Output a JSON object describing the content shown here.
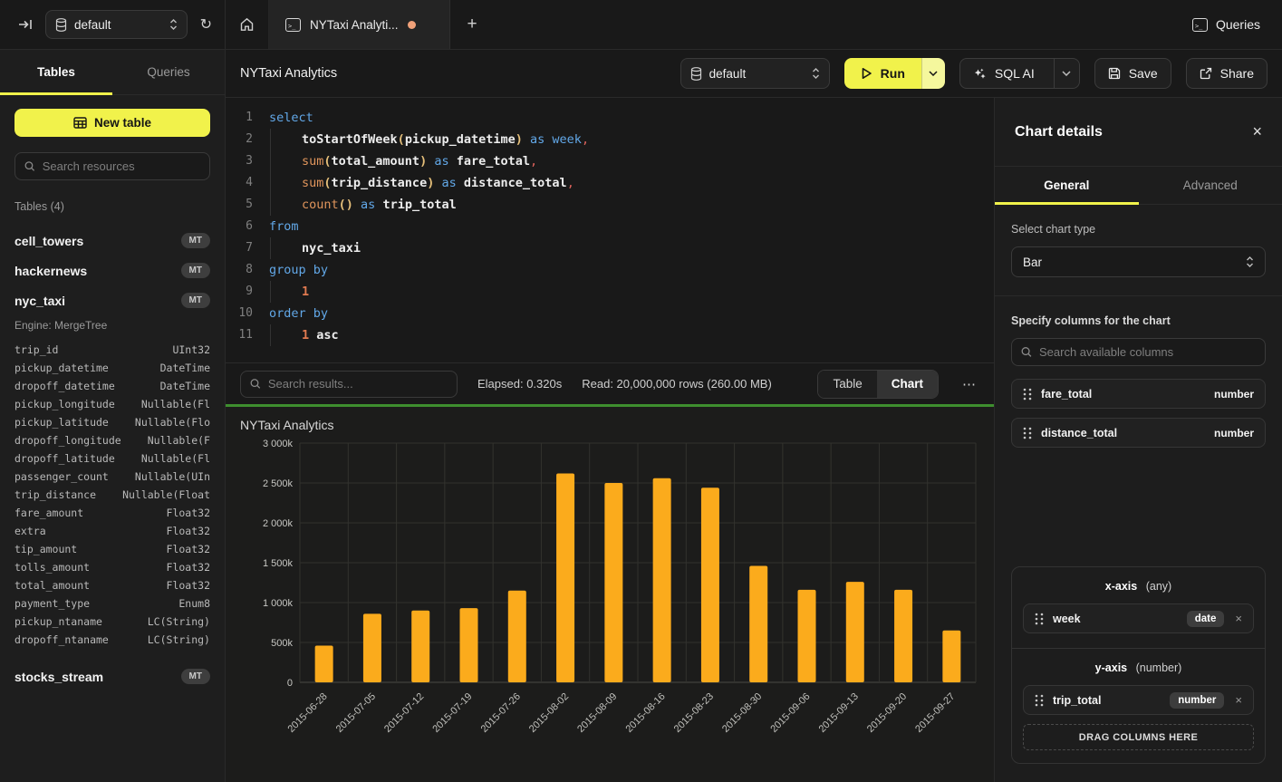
{
  "icons": {
    "refresh": "↻",
    "plus": "+",
    "ellipsis": "⋯",
    "close": "×",
    "play": "▷",
    "collapse_sidebar": "svg-arrow-to-bar",
    "database": "svg-db-cylinder",
    "home": "svg-house",
    "terminal": ">_",
    "search": "svg-magnifier",
    "sparkle": "svg-four-point-star",
    "save": "svg-floppy",
    "share": "svg-external-link",
    "chevron_down": "svg-chevron-down",
    "chevron_updown": "svg-chevron-updown",
    "drag_handle": "svg-six-dots",
    "table_grid": "svg-table-grid"
  },
  "topbar": {
    "database_selector": "default",
    "tab_title": "NYTaxi Analyti...",
    "queries_label": "Queries"
  },
  "sidebar": {
    "tabs": [
      {
        "label": "Tables",
        "active": true
      },
      {
        "label": "Queries",
        "active": false
      }
    ],
    "new_table_label": "New table",
    "search_placeholder": "Search resources",
    "section_label": "Tables (4)",
    "tables": [
      {
        "name": "cell_towers",
        "badge": "MT"
      },
      {
        "name": "hackernews",
        "badge": "MT"
      },
      {
        "name": "nyc_taxi",
        "badge": "MT",
        "engine": "Engine: MergeTree",
        "columns": [
          [
            "trip_id",
            "UInt32"
          ],
          [
            "pickup_datetime",
            "DateTime"
          ],
          [
            "dropoff_datetime",
            "DateTime"
          ],
          [
            "pickup_longitude",
            "Nullable(Fl"
          ],
          [
            "pickup_latitude",
            "Nullable(Flo"
          ],
          [
            "dropoff_longitude",
            "Nullable(F"
          ],
          [
            "dropoff_latitude",
            "Nullable(Fl"
          ],
          [
            "passenger_count",
            "Nullable(UIn"
          ],
          [
            "trip_distance",
            "Nullable(Float"
          ],
          [
            "fare_amount",
            "Float32"
          ],
          [
            "extra",
            "Float32"
          ],
          [
            "tip_amount",
            "Float32"
          ],
          [
            "tolls_amount",
            "Float32"
          ],
          [
            "total_amount",
            "Float32"
          ],
          [
            "payment_type",
            "Enum8"
          ],
          [
            "pickup_ntaname",
            "LC(String)"
          ],
          [
            "dropoff_ntaname",
            "LC(String)"
          ]
        ]
      },
      {
        "name": "stocks_stream",
        "badge": "MT"
      }
    ]
  },
  "toolbar": {
    "title": "NYTaxi Analytics",
    "database_selector": "default",
    "run_label": "Run",
    "sql_ai_label": "SQL AI",
    "save_label": "Save",
    "share_label": "Share"
  },
  "editor": {
    "lines": [
      {
        "num": "1",
        "indent": false,
        "tokens": [
          [
            "kw",
            "select"
          ]
        ]
      },
      {
        "num": "2",
        "indent": true,
        "tokens": [
          [
            "id",
            "toStartOfWeek"
          ],
          [
            "paren",
            "("
          ],
          [
            "id",
            "pickup_datetime"
          ],
          [
            "paren",
            ")"
          ],
          [
            "plain",
            " "
          ],
          [
            "kw",
            "as"
          ],
          [
            "plain",
            " "
          ],
          [
            "kw",
            "week"
          ],
          [
            "comma",
            ","
          ]
        ]
      },
      {
        "num": "3",
        "indent": true,
        "tokens": [
          [
            "fn",
            "sum"
          ],
          [
            "paren",
            "("
          ],
          [
            "id",
            "total_amount"
          ],
          [
            "paren",
            ")"
          ],
          [
            "plain",
            " "
          ],
          [
            "kw",
            "as"
          ],
          [
            "plain",
            " "
          ],
          [
            "id",
            "fare_total"
          ],
          [
            "comma",
            ","
          ]
        ]
      },
      {
        "num": "4",
        "indent": true,
        "tokens": [
          [
            "fn",
            "sum"
          ],
          [
            "paren",
            "("
          ],
          [
            "id",
            "trip_distance"
          ],
          [
            "paren",
            ")"
          ],
          [
            "plain",
            " "
          ],
          [
            "kw",
            "as"
          ],
          [
            "plain",
            " "
          ],
          [
            "id",
            "distance_total"
          ],
          [
            "comma",
            ","
          ]
        ]
      },
      {
        "num": "5",
        "indent": true,
        "tokens": [
          [
            "fn",
            "count"
          ],
          [
            "paren",
            "()"
          ],
          [
            "plain",
            " "
          ],
          [
            "kw",
            "as"
          ],
          [
            "plain",
            " "
          ],
          [
            "id",
            "trip_total"
          ]
        ]
      },
      {
        "num": "6",
        "indent": false,
        "tokens": [
          [
            "kw",
            "from"
          ]
        ]
      },
      {
        "num": "7",
        "indent": true,
        "tokens": [
          [
            "id",
            "nyc_taxi"
          ]
        ]
      },
      {
        "num": "8",
        "indent": false,
        "tokens": [
          [
            "kw",
            "group by"
          ]
        ]
      },
      {
        "num": "9",
        "indent": true,
        "tokens": [
          [
            "num",
            "1"
          ]
        ]
      },
      {
        "num": "10",
        "indent": false,
        "tokens": [
          [
            "kw",
            "order by"
          ]
        ]
      },
      {
        "num": "11",
        "indent": true,
        "tokens": [
          [
            "num",
            "1"
          ],
          [
            "plain",
            " "
          ],
          [
            "id",
            "asc"
          ]
        ]
      }
    ]
  },
  "results_bar": {
    "search_placeholder": "Search results...",
    "elapsed": "Elapsed: 0.320s",
    "read": "Read: 20,000,000 rows (260.00 MB)",
    "view_toggle": [
      {
        "label": "Table",
        "active": false
      },
      {
        "label": "Chart",
        "active": true
      }
    ]
  },
  "chart_data": {
    "type": "bar",
    "title": "NYTaxi Analytics",
    "categories": [
      "2015-06-28",
      "2015-07-05",
      "2015-07-12",
      "2015-07-19",
      "2015-07-26",
      "2015-08-02",
      "2015-08-09",
      "2015-08-16",
      "2015-08-23",
      "2015-08-30",
      "2015-09-06",
      "2015-09-13",
      "2015-09-20",
      "2015-09-27"
    ],
    "series": [
      {
        "name": "trip_total",
        "values": [
          460000,
          860000,
          900000,
          930000,
          1150000,
          2620000,
          2500000,
          2560000,
          2440000,
          1460000,
          1160000,
          1260000,
          1160000,
          650000
        ]
      }
    ],
    "xlabel": "",
    "ylabel": "",
    "ylim": [
      0,
      3000000
    ],
    "ytick_values": [
      0,
      500000,
      1000000,
      1500000,
      2000000,
      2500000,
      3000000
    ],
    "ytick_labels": [
      "0",
      "500k",
      "1 000k",
      "1 500k",
      "2 000k",
      "2 500k",
      "3 000k"
    ],
    "grid": true,
    "legend_position": "none",
    "bar_color": "#FBAB1C",
    "x_tick_rotation": -45
  },
  "chart_details": {
    "title": "Chart details",
    "tabs": [
      {
        "label": "General",
        "active": true
      },
      {
        "label": "Advanced",
        "active": false
      }
    ],
    "chart_type_label": "Select chart type",
    "chart_type_value": "Bar",
    "columns_label": "Specify columns for the chart",
    "columns_search_placeholder": "Search available columns",
    "available_columns": [
      {
        "name": "fare_total",
        "type": "number"
      },
      {
        "name": "distance_total",
        "type": "number"
      }
    ],
    "x_axis": {
      "label": "x-axis",
      "hint": "(any)",
      "chips": [
        {
          "name": "week",
          "type": "date"
        }
      ]
    },
    "y_axis": {
      "label": "y-axis",
      "hint": "(number)",
      "chips": [
        {
          "name": "trip_total",
          "type": "number"
        }
      ]
    },
    "drop_zone_label": "DRAG COLUMNS HERE"
  }
}
